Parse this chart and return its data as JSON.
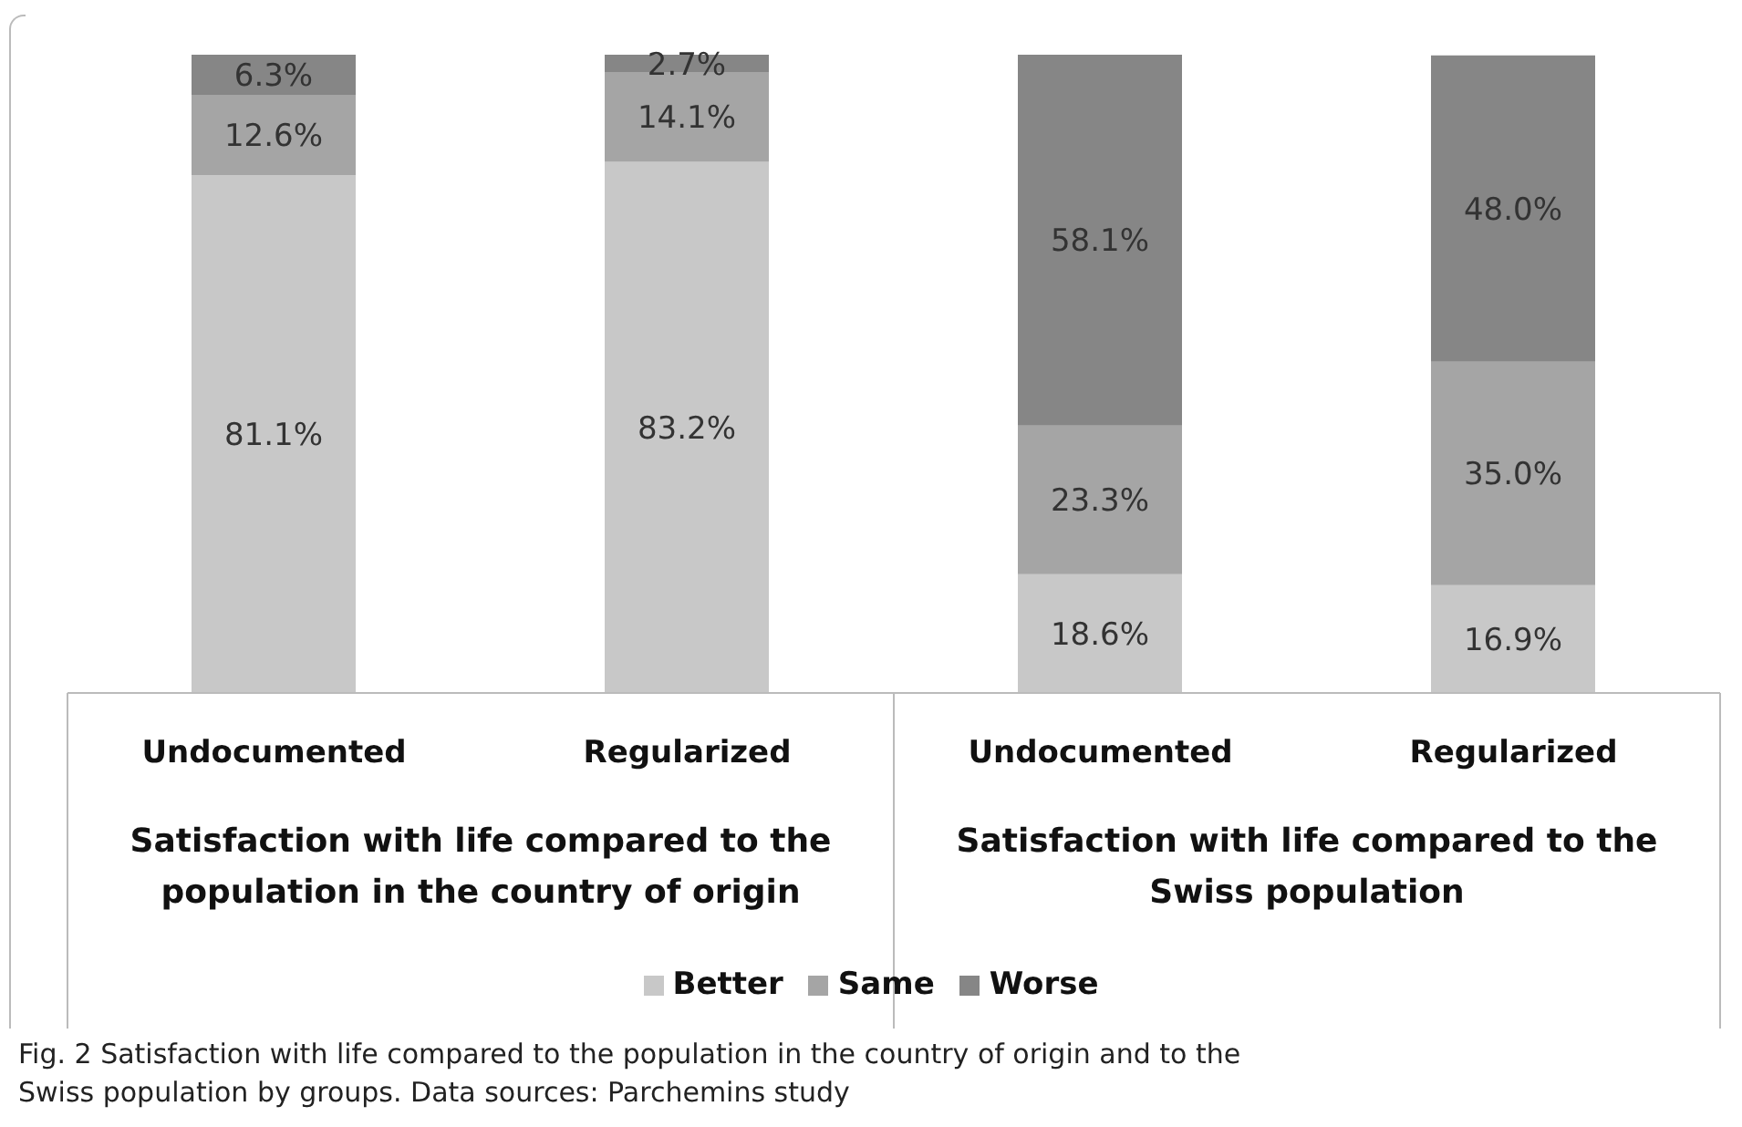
{
  "chart_data": {
    "type": "bar",
    "stacked": true,
    "legend": "bottom",
    "categories": [
      "Undocumented",
      "Regularized",
      "Undocumented",
      "Regularized"
    ],
    "series": [
      {
        "name": "Better",
        "color": "#c8c8c8",
        "values": [
          81.1,
          83.2,
          18.6,
          16.9
        ],
        "value_labels": [
          "81.1%",
          "83.2%",
          "18.6%",
          "16.9%"
        ]
      },
      {
        "name": "Same",
        "color": "#a5a5a5",
        "values": [
          12.6,
          14.1,
          23.3,
          35.0
        ],
        "value_labels": [
          "12.6%",
          "14.1%",
          "23.3%",
          "35.0%"
        ]
      },
      {
        "name": "Worse",
        "color": "#868686",
        "values": [
          6.3,
          2.7,
          58.1,
          48.0
        ],
        "value_labels": [
          "6.3%",
          "2.7%",
          "58.1%",
          "48.0%"
        ]
      }
    ],
    "annotations": [
      "Satisfaction with life compared to the population in the country of origin",
      "Satisfaction with life compared to the Swiss population",
      "Fig. 2 Satisfaction with life compared to the population in the country of origin and to the Swiss population by groups. Data sources: Parchemins study"
    ]
  }
}
